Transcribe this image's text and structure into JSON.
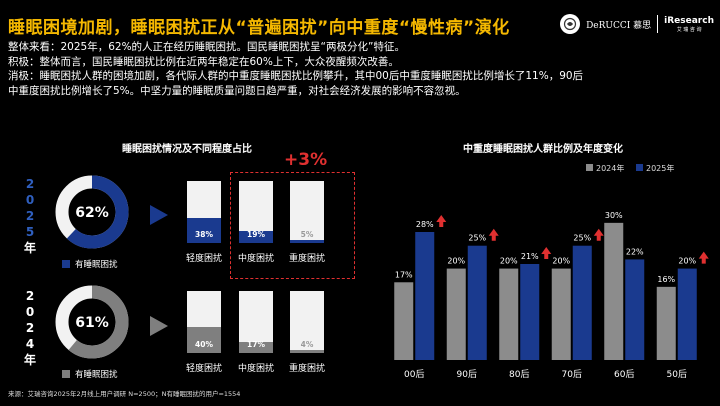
{
  "header": {
    "title": "睡眠困境加剧，睡眠困扰正从“普遍困扰”向中重度“慢性病”演化",
    "logo_brand": "DeRUCCI 慕思",
    "logo_research": "iResearch",
    "logo_research_sub": "艾 瑞 咨 询"
  },
  "summary": [
    "整体来看：2025年，62%的人正在经历睡眠困扰。国民睡眠困扰呈“两极分化”特征。",
    "积极：整体而言，国民睡眠困扰比例在近两年稳定在60%上下，大众夜醒频次改善。",
    "消极：睡眠困扰人群的困境加剧，各代际人群的中重度睡眠困扰比例攀升，其中00后中重度睡眠困扰比例增长了11%，90后",
    "中重度困扰比例增长了5%。中坚力量的睡眠质量问题日趋严重，对社会经济发展的影响不容忽视。"
  ],
  "left": {
    "title": "睡眠困扰情况及不同程度占比",
    "highlight": "+3%",
    "rows": [
      {
        "year_chars": [
          "2",
          "0",
          "2",
          "5",
          "年"
        ],
        "ratio": 0.62,
        "ratio_label": "62%",
        "legend": "有睡眠困扰",
        "color": "#1a3a8f",
        "bars": [
          {
            "label": "轻度困扰",
            "value": 0.38,
            "text": "38%"
          },
          {
            "label": "中度困扰",
            "value": 0.19,
            "text": "19%"
          },
          {
            "label": "重度困扰",
            "value": 0.05,
            "text": "5%"
          }
        ]
      },
      {
        "year_chars": [
          "2",
          "0",
          "2",
          "4",
          "年"
        ],
        "ratio": 0.61,
        "ratio_label": "61%",
        "legend": "有睡眠困扰",
        "color": "#7f7f7f",
        "bars": [
          {
            "label": "轻度困扰",
            "value": 0.4,
            "text": "40%"
          },
          {
            "label": "中度困扰",
            "value": 0.17,
            "text": "17%"
          },
          {
            "label": "重度困扰",
            "value": 0.04,
            "text": "4%"
          }
        ]
      }
    ]
  },
  "chart_data": {
    "type": "bar",
    "title": "中重度睡眠困扰人群比例及年度变化",
    "categories": [
      "00后",
      "90后",
      "80后",
      "70后",
      "60后",
      "50后"
    ],
    "series": [
      {
        "name": "2024年",
        "values": [
          17,
          20,
          20,
          20,
          30,
          16
        ],
        "color": "#8c8c8c"
      },
      {
        "name": "2025年",
        "values": [
          28,
          25,
          21,
          25,
          22,
          20
        ],
        "color": "#1a3a8f"
      }
    ],
    "labels_2024": [
      "17%",
      "20%",
      "20%",
      "20%",
      "30%",
      "16%"
    ],
    "labels_2025": [
      "28%",
      "25%",
      "21%",
      "25%",
      "22%",
      "20%"
    ],
    "increase_marked": [
      true,
      true,
      true,
      true,
      false,
      true
    ],
    "ylim": [
      0,
      35
    ]
  },
  "source": "来源：艾瑞咨询2025年2月线上用户调研 N=2500；N有睡眠困扰的用户=1554"
}
